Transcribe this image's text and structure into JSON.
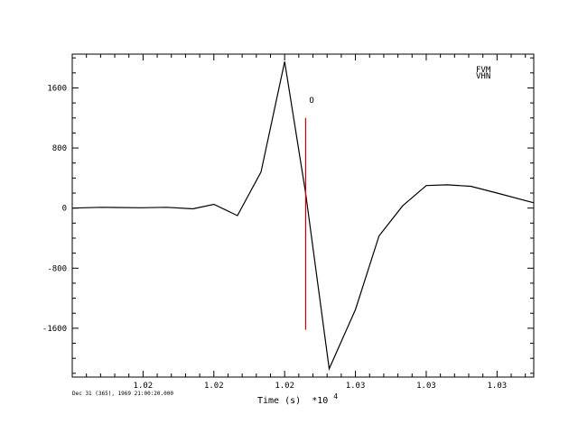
{
  "chart_data": {
    "type": "line",
    "xlabel": "Time (s)",
    "xlabel_multiplier": "*10",
    "xlabel_exponent": "4",
    "footer_text": "Dec 31 (365), 1969 21:00:20.000",
    "legend": [
      "FVM",
      "VHN"
    ],
    "pick_label": "O",
    "xlim": [
      1.0154,
      1.033
    ],
    "ylim": [
      -2250,
      2050
    ],
    "y_ticks": [
      {
        "value": 1600,
        "label": "1600"
      },
      {
        "value": 800,
        "label": "800"
      },
      {
        "value": 0,
        "label": "0"
      },
      {
        "value": -800,
        "label": "-800"
      },
      {
        "value": -1600,
        "label": "-1600"
      }
    ],
    "x_ticks": [
      {
        "value": 1.0181,
        "label": "1.02"
      },
      {
        "value": 1.0208,
        "label": "1.02"
      },
      {
        "value": 1.0235,
        "label": "1.02"
      },
      {
        "value": 1.0262,
        "label": "1.03"
      },
      {
        "value": 1.0289,
        "label": "1.03"
      },
      {
        "value": 1.0316,
        "label": "1.03"
      }
    ],
    "pick": {
      "x": 1.0243,
      "y_top": 1200,
      "y_bottom": -1620,
      "color": "#cc0000"
    },
    "series": [
      {
        "color": "#000000",
        "points": [
          [
            1.0154,
            0
          ],
          [
            1.0165,
            10
          ],
          [
            1.018,
            5
          ],
          [
            1.019,
            10
          ],
          [
            1.02,
            -10
          ],
          [
            1.0208,
            50
          ],
          [
            1.0217,
            -100
          ],
          [
            1.0226,
            480
          ],
          [
            1.0235,
            1950
          ],
          [
            1.0243,
            200
          ],
          [
            1.0252,
            -2140
          ],
          [
            1.0262,
            -1350
          ],
          [
            1.0271,
            -370
          ],
          [
            1.028,
            30
          ],
          [
            1.0289,
            300
          ],
          [
            1.0297,
            310
          ],
          [
            1.0306,
            290
          ],
          [
            1.0316,
            200
          ],
          [
            1.033,
            70
          ]
        ]
      }
    ]
  }
}
